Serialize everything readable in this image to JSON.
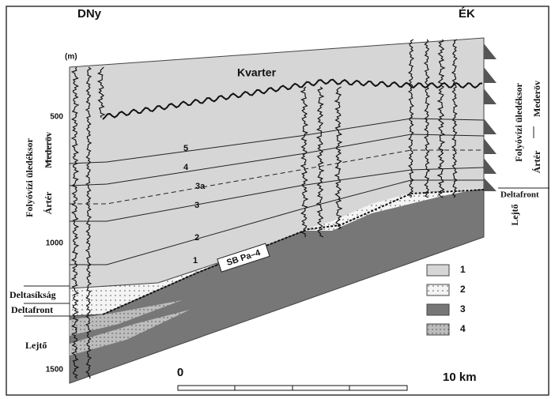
{
  "header": {
    "left": "DNy",
    "right": "ÉK"
  },
  "depth": {
    "unit": "(m)",
    "ticks": [
      500,
      1000,
      1500
    ]
  },
  "section": {
    "quaternary": "Kvarter",
    "horizons": [
      "5",
      "4",
      "3a",
      "3",
      "2",
      "1"
    ],
    "boundary": "SB Pa–4"
  },
  "left_labels": {
    "sequence": "Folyóvízi üledéksor",
    "channel": "Mederöv",
    "floodplain": "Ártér",
    "delta_plain": "Deltasíkság",
    "delta_front": "Deltafront",
    "slope": "Lejtő"
  },
  "right_labels": {
    "sequence": "Folyóvízi üledéksor",
    "channel": "Mederöv",
    "floodplain": "Ártér",
    "delta_front": "Deltafront",
    "slope": "Lejtő"
  },
  "legend": [
    "1",
    "2",
    "3",
    "4"
  ],
  "scale": {
    "start": 0,
    "end": "10 km"
  }
}
